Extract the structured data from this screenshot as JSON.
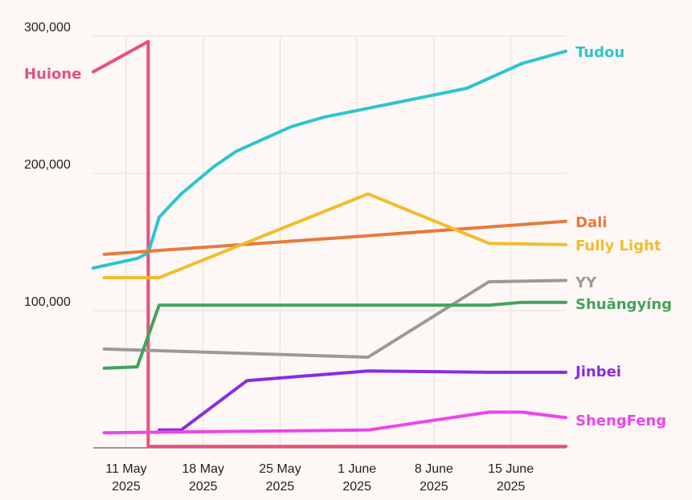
{
  "chart_data": {
    "type": "line",
    "x_ticks": [
      {
        "date": "2025-05-11",
        "line1": "11 May",
        "line2": "2025"
      },
      {
        "date": "2025-05-18",
        "line1": "18 May",
        "line2": "2025"
      },
      {
        "date": "2025-05-25",
        "line1": "25 May",
        "line2": "2025"
      },
      {
        "date": "2025-06-01",
        "line1": "1 June",
        "line2": "2025"
      },
      {
        "date": "2025-06-08",
        "line1": "8 June",
        "line2": "2025"
      },
      {
        "date": "2025-06-15",
        "line1": "15 June",
        "line2": "2025"
      }
    ],
    "y_ticks": [
      {
        "value": 100000,
        "label": "100,000"
      },
      {
        "value": 200000,
        "label": "200,000"
      },
      {
        "value": 300000,
        "label": "300,000"
      }
    ],
    "xlim": [
      "2025-05-08",
      "2025-06-20"
    ],
    "ylim": [
      0,
      300000
    ],
    "grid": true,
    "series": [
      {
        "name": "Huione",
        "color": "#e8507a",
        "label_side": "left",
        "points": [
          [
            "2025-05-08",
            274000
          ],
          [
            "2025-05-13",
            296000
          ],
          [
            "2025-05-13",
            1000
          ],
          [
            "2025-06-20",
            1000
          ]
        ]
      },
      {
        "name": "Tudou",
        "color": "#2ec4cc",
        "label_side": "right",
        "points": [
          [
            "2025-05-08",
            131000
          ],
          [
            "2025-05-12",
            138000
          ],
          [
            "2025-05-13",
            142000
          ],
          [
            "2025-05-14",
            168000
          ],
          [
            "2025-05-16",
            185000
          ],
          [
            "2025-05-19",
            205000
          ],
          [
            "2025-05-21",
            216000
          ],
          [
            "2025-05-26",
            234000
          ],
          [
            "2025-05-29",
            241000
          ],
          [
            "2025-06-03",
            249000
          ],
          [
            "2025-06-11",
            262000
          ],
          [
            "2025-06-16",
            280000
          ],
          [
            "2025-06-20",
            289000
          ]
        ]
      },
      {
        "name": "Dali",
        "color": "#e8793c",
        "label_side": "right",
        "points": [
          [
            "2025-05-09",
            141000
          ],
          [
            "2025-06-01",
            154000
          ],
          [
            "2025-06-20",
            165000
          ]
        ]
      },
      {
        "name": "Fully Light",
        "color": "#f2bc2a",
        "label_side": "right",
        "points": [
          [
            "2025-05-09",
            124000
          ],
          [
            "2025-05-14",
            124000
          ],
          [
            "2025-06-02",
            185000
          ],
          [
            "2025-06-13",
            149000
          ],
          [
            "2025-06-20",
            148000
          ]
        ]
      },
      {
        "name": "YY",
        "color": "#9a9a9a",
        "label_side": "right",
        "points": [
          [
            "2025-05-09",
            72000
          ],
          [
            "2025-06-02",
            66000
          ],
          [
            "2025-06-13",
            121000
          ],
          [
            "2025-06-20",
            122000
          ]
        ]
      },
      {
        "name": "Shuāngyíng",
        "color": "#43a35a",
        "label_side": "right",
        "points": [
          [
            "2025-05-09",
            58000
          ],
          [
            "2025-05-12",
            59000
          ],
          [
            "2025-05-14",
            104000
          ],
          [
            "2025-06-13",
            104000
          ],
          [
            "2025-06-16",
            106000
          ],
          [
            "2025-06-20",
            106000
          ]
        ]
      },
      {
        "name": "Jinbei",
        "color": "#8a2be2",
        "label_side": "right",
        "points": [
          [
            "2025-05-14",
            13000
          ],
          [
            "2025-05-16",
            13000
          ],
          [
            "2025-05-22",
            49000
          ],
          [
            "2025-06-02",
            56000
          ],
          [
            "2025-06-13",
            55000
          ],
          [
            "2025-06-20",
            55000
          ]
        ]
      },
      {
        "name": "ShengFeng",
        "color": "#ee44ee",
        "label_side": "right",
        "points": [
          [
            "2025-05-09",
            11000
          ],
          [
            "2025-06-02",
            13000
          ],
          [
            "2025-06-13",
            26000
          ],
          [
            "2025-06-16",
            26000
          ],
          [
            "2025-06-20",
            22000
          ]
        ]
      }
    ]
  }
}
